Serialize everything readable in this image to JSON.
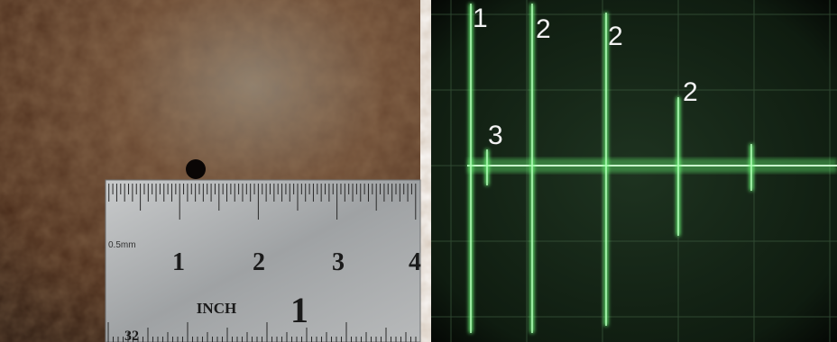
{
  "left_panel": {
    "ruler": {
      "unit_label": "0.5mm",
      "cm_labels": [
        "1",
        "2",
        "3",
        "4"
      ],
      "inch_label": "INCH",
      "inch_number": "1",
      "bottom_label": "32"
    }
  },
  "right_panel": {
    "peak_labels": [
      "1",
      "3",
      "2",
      "2",
      "2"
    ]
  }
}
